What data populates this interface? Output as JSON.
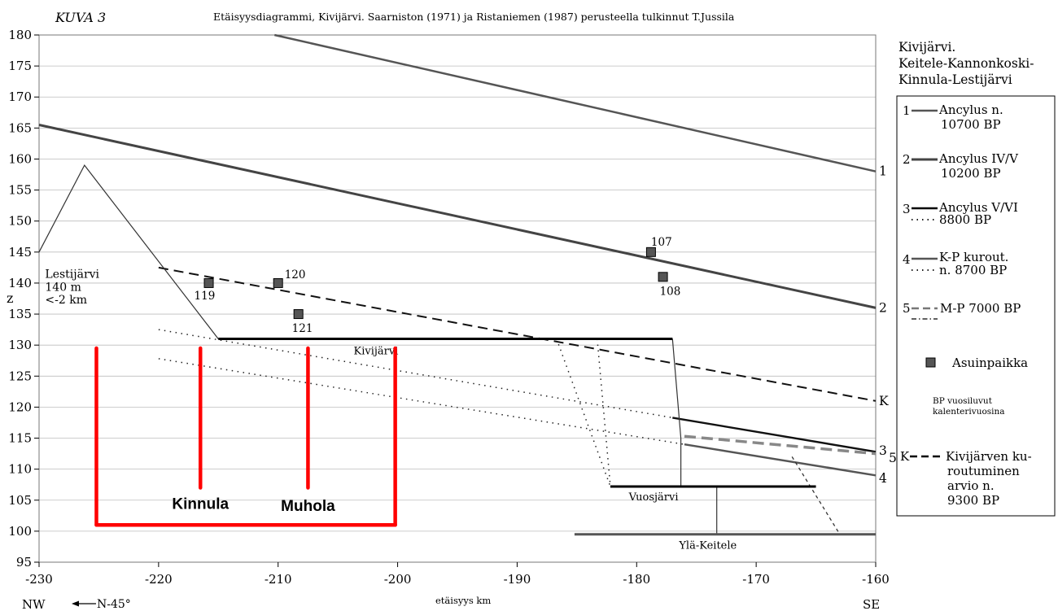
{
  "figure": {
    "label": "KUVA 3",
    "title": "Etäisyysdiagrammi, Kivijärvi. Saarniston (1971) ja Ristaniemen (1987) perusteella tulkinnut T.Jussila",
    "region_title": [
      "Kivijärvi.",
      "Keitele-Kannonkoski-",
      "Kinnula-Lestijärvi"
    ],
    "dir_left": "NW",
    "dir_right": "SE",
    "direction_arrow": "N-45°"
  },
  "chart_data": {
    "type": "line",
    "xlabel": "etäisyys km",
    "ylabel": "z",
    "xlim": [
      -230,
      -160
    ],
    "ylim": [
      95,
      180
    ],
    "x_ticks": [
      -230,
      -220,
      -210,
      -200,
      -190,
      -180,
      -170,
      -160
    ],
    "y_ticks": [
      95,
      100,
      105,
      110,
      115,
      120,
      125,
      130,
      135,
      140,
      145,
      150,
      155,
      160,
      165,
      170,
      175,
      180
    ],
    "grid": true,
    "color": "#444444",
    "series": [
      {
        "id": "1",
        "style": "solid-grey",
        "points": [
          [
            -210.3,
            180
          ],
          [
            -160,
            158
          ]
        ]
      },
      {
        "id": "2",
        "style": "solid-thick",
        "points": [
          [
            -230,
            165.5
          ],
          [
            -160,
            136
          ]
        ]
      },
      {
        "id": "3",
        "style": "solid",
        "points": [
          [
            -177,
            118.3
          ],
          [
            -160,
            112.8
          ]
        ]
      },
      {
        "id": "3",
        "style": "dotted",
        "points": [
          [
            -220,
            132.5
          ],
          [
            -177,
            118.3
          ]
        ]
      },
      {
        "id": "4",
        "style": "solid-grey",
        "points": [
          [
            -176,
            114
          ],
          [
            -160,
            109
          ]
        ]
      },
      {
        "id": "4",
        "style": "dotted",
        "points": [
          [
            -220,
            127.8
          ],
          [
            -176,
            114
          ]
        ]
      },
      {
        "id": "5",
        "style": "dashed-grey",
        "points": [
          [
            -176,
            115.3
          ],
          [
            -160,
            112.5
          ]
        ]
      },
      {
        "id": "K",
        "style": "dashed",
        "points": [
          [
            -220,
            142.5
          ],
          [
            -160,
            121
          ]
        ]
      },
      {
        "id": "relief",
        "style": "thin",
        "points": [
          [
            -230,
            145
          ],
          [
            -226.2,
            159
          ],
          [
            -215,
            131
          ]
        ]
      },
      {
        "id": "kivijarvi-outlet",
        "style": "thin",
        "points": [
          [
            -177,
            131
          ],
          [
            -176.3,
            115
          ],
          [
            -176.3,
            107
          ]
        ]
      },
      {
        "id": "dotted-connector-a",
        "style": "dotted",
        "points": [
          [
            -186.7,
            131
          ],
          [
            -182.2,
            107.2
          ]
        ]
      },
      {
        "id": "dotted-connector-b",
        "style": "dotted",
        "points": [
          [
            -183.3,
            131
          ],
          [
            -182.2,
            107.2
          ]
        ]
      },
      {
        "id": "vuosjarvi-connector",
        "style": "thin",
        "points": [
          [
            -173.3,
            107.2
          ],
          [
            -173.3,
            99.5
          ]
        ]
      },
      {
        "id": "ylakeitele-connector",
        "style": "dashed-fine",
        "points": [
          [
            -167,
            112
          ],
          [
            -163,
            99.5
          ]
        ]
      }
    ],
    "lake_levels": [
      {
        "name": "Kivijärvi",
        "x": [
          -215,
          -177
        ],
        "z": 131
      },
      {
        "name": "Vuosjärvi",
        "x": [
          -182.2,
          -165
        ],
        "z": 107.2
      },
      {
        "name": "Ylä-Keitele",
        "x": [
          -185.2,
          -160
        ],
        "z": 99.5
      }
    ],
    "sites": [
      {
        "label": "107",
        "x": -178.8,
        "z": 145
      },
      {
        "label": "108",
        "x": -177.8,
        "z": 141
      },
      {
        "label": "119",
        "x": -215.8,
        "z": 140
      },
      {
        "label": "120",
        "x": -210,
        "z": 140
      },
      {
        "label": "121",
        "x": -208.3,
        "z": 135
      }
    ],
    "site_color": "#555555",
    "annotations": [
      {
        "text": "Lestijärvi",
        "x": -229.7,
        "z": 141.5
      },
      {
        "text": "140 m",
        "x": -229.7,
        "z": 139.4
      },
      {
        "text": "<-2 km",
        "x": -229.7,
        "z": 137.4
      }
    ],
    "right_labels": [
      {
        "text": "1",
        "z": 158
      },
      {
        "text": "2",
        "z": 136
      },
      {
        "text": "K",
        "z": 121
      },
      {
        "text": "3",
        "z": 113
      },
      {
        "text": "5",
        "z": 111.8
      },
      {
        "text": "4",
        "z": 108.5
      }
    ],
    "red_overlay": {
      "color": "#ff0000",
      "verticals": [
        {
          "x": -225.2,
          "z": [
            101,
            129.5
          ]
        },
        {
          "x": -216.5,
          "z": [
            107,
            129.5
          ]
        },
        {
          "x": -207.5,
          "z": [
            107,
            129.5
          ]
        },
        {
          "x": -200.2,
          "z": [
            101,
            129.5
          ]
        }
      ],
      "base": {
        "x": [
          -225.2,
          -200.2
        ],
        "z": 101
      },
      "labels": [
        {
          "text": "Kinnula",
          "x": -216.5,
          "z": 104.5
        },
        {
          "text": "Muhola",
          "x": -207.5,
          "z": 104.2
        }
      ]
    }
  },
  "legend": {
    "items": [
      {
        "num": "1",
        "line": "solid",
        "lines": [
          "Ancylus n.",
          "10700 BP"
        ]
      },
      {
        "num": "2",
        "line": "solid",
        "lines": [
          "Ancylus IV/V",
          "10200 BP"
        ]
      },
      {
        "num": "3",
        "line": "solid+dotted",
        "lines": [
          "Ancylus V/VI",
          "8800 BP"
        ]
      },
      {
        "num": "4",
        "line": "solid+dotted",
        "lines": [
          "K-P kurout.",
          "n. 8700 BP"
        ]
      },
      {
        "num": "5",
        "line": "dashed+dashdot",
        "lines": [
          "M-P 7000 BP"
        ]
      }
    ],
    "site_label": "Asuinpaikka",
    "note": [
      "BP vuosiluvut",
      "kalenterivuosina"
    ],
    "k_item": {
      "num": "K",
      "lines": [
        "Kivijärven ku-",
        "routuminen",
        "arvio n.",
        "9300 BP"
      ]
    }
  }
}
